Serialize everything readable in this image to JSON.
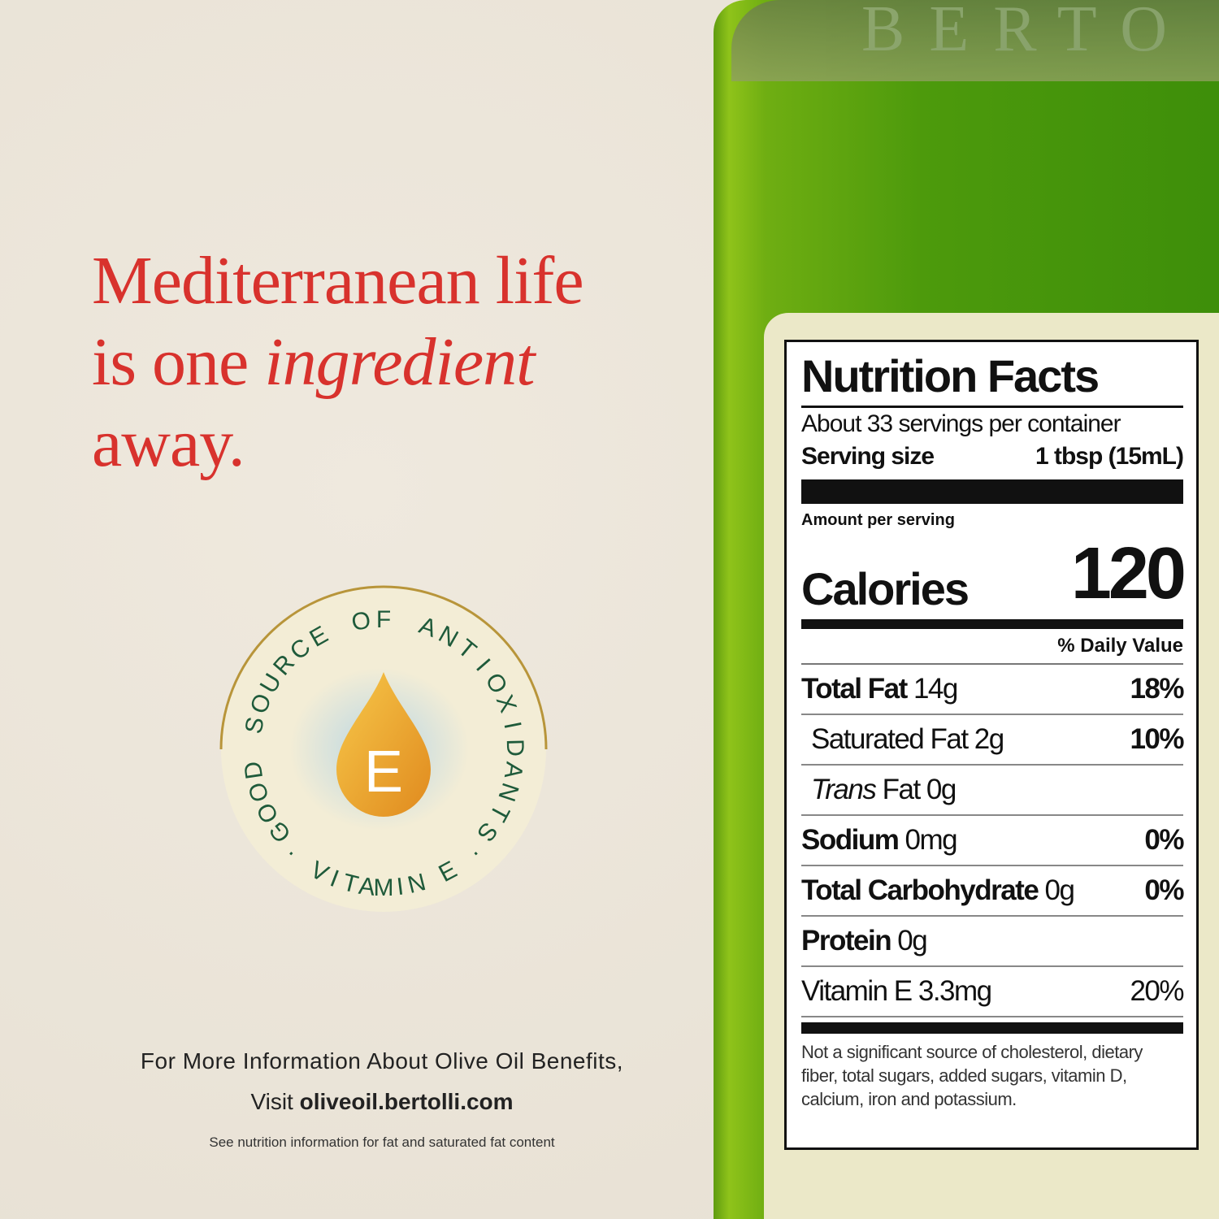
{
  "headline": {
    "line1": "Mediterranean life",
    "line2_prefix": "is one ",
    "line2_emphasis": "ingredient",
    "line3": "away."
  },
  "badge": {
    "arc_text": "GOOD SOURCE OF ANTIOXIDANTS",
    "bottom_text": "· VITAMIN E ·",
    "drop_letter": "E"
  },
  "info": {
    "line1": "For More Information About Olive Oil Benefits,",
    "visit": "Visit ",
    "url": "oliveoil.bertolli.com",
    "disclaimer": "See nutrition information for fat and saturated fat content"
  },
  "bottle": {
    "embossed_text": "BERTO"
  },
  "nutrition": {
    "title": "Nutrition Facts",
    "servings": "About 33 servings per container",
    "serving_size_label": "Serving size",
    "serving_size_value": "1 tbsp (15mL)",
    "amount_per_serving": "Amount per serving",
    "calories_label": "Calories",
    "calories_value": "120",
    "daily_value_header": "% Daily Value",
    "rows": [
      {
        "bold": "Total Fat",
        "value": " 14g",
        "dv": "18%"
      },
      {
        "bold": "",
        "value": "Saturated Fat 2g",
        "dv": "10%"
      },
      {
        "bold": "",
        "italic": "Trans",
        "value": " Fat 0g",
        "dv": ""
      },
      {
        "bold": "Sodium",
        "value": " 0mg",
        "dv": "0%"
      },
      {
        "bold": "Total Carbohydrate",
        "value": " 0g",
        "dv": "0%"
      },
      {
        "bold": "Protein",
        "value": " 0g",
        "dv": ""
      },
      {
        "bold": "",
        "value": "Vitamin E 3.3mg",
        "dv": "20%"
      }
    ],
    "footnote": "Not a significant source of cholesterol, dietary fiber, total sugars, added sugars, vitamin D, calcium, iron and potassium."
  },
  "colors": {
    "headline": "#d8322d",
    "background": "#ebe5da",
    "bottle_green": "#4d9a0c",
    "badge_text": "#1e5a3a",
    "badge_ring": "#b8953a"
  }
}
